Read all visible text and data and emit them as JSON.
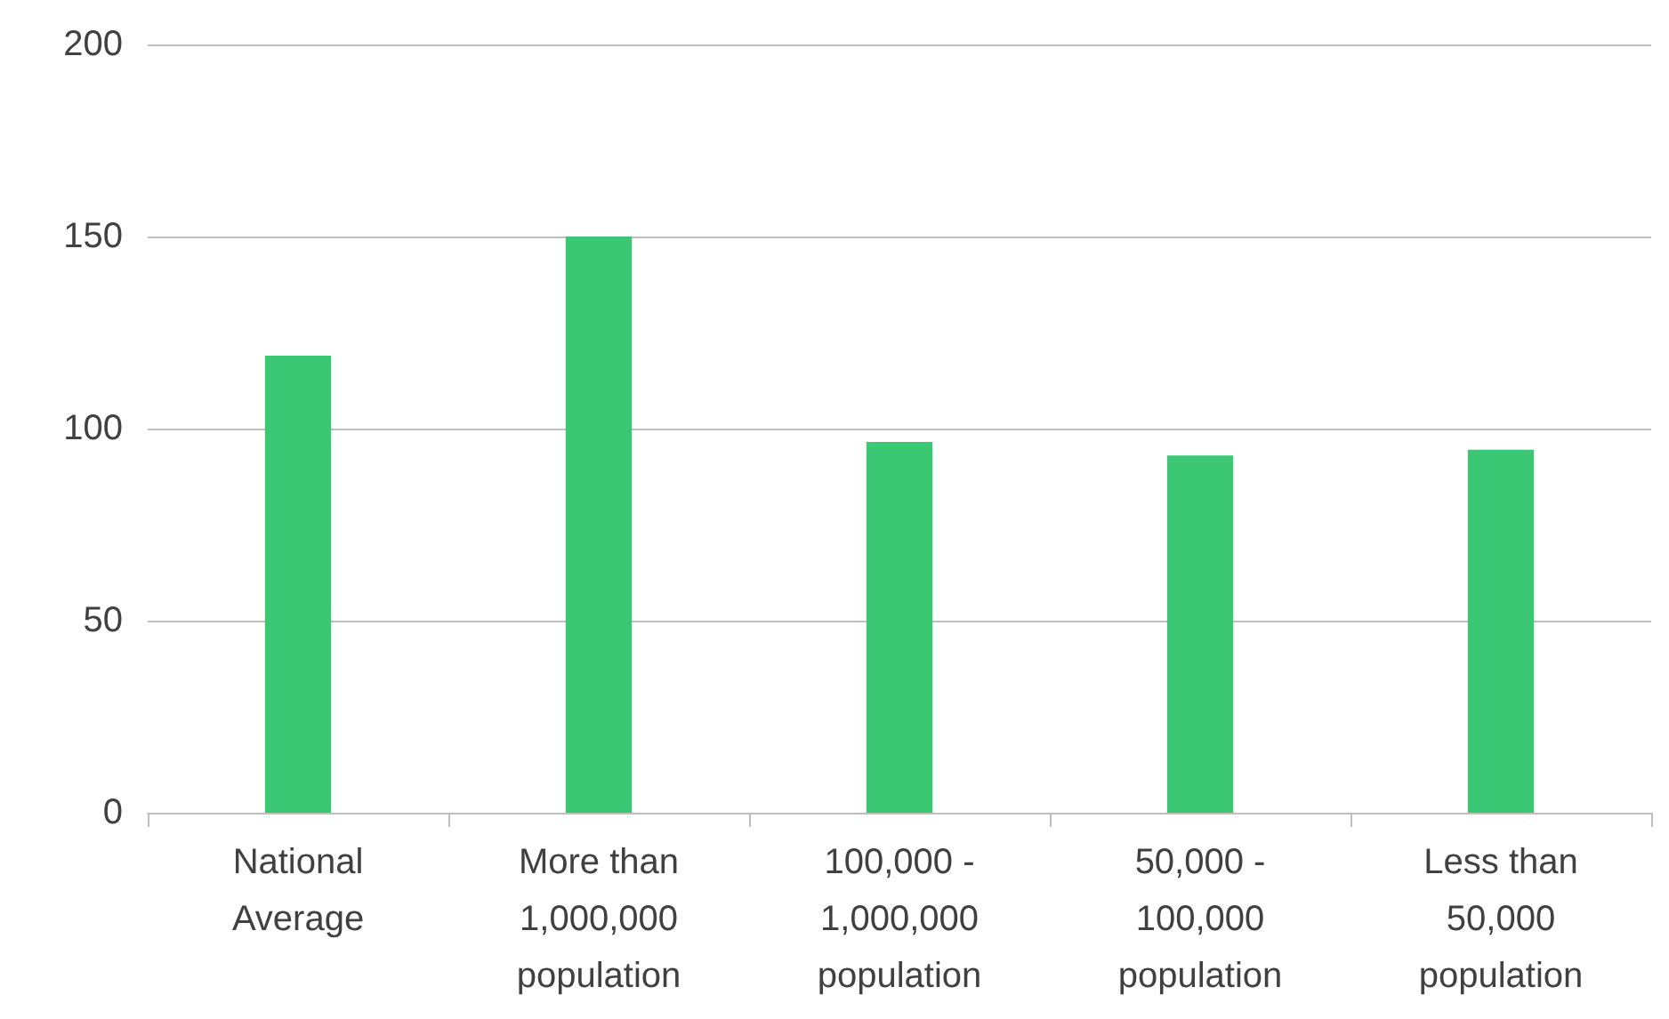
{
  "chart_data": {
    "type": "bar",
    "categories": [
      "National Average",
      "More than 1,000,000 population",
      "100,000 - 1,000,000 population",
      "50,000 - 100,000 population",
      "Less than 50,000 population"
    ],
    "values": [
      119,
      150,
      96.5,
      93,
      94.5
    ],
    "color": "#3cc774",
    "ylim": [
      0,
      200
    ],
    "yticks": [
      0,
      50,
      100,
      150,
      200
    ],
    "grid": "y"
  }
}
